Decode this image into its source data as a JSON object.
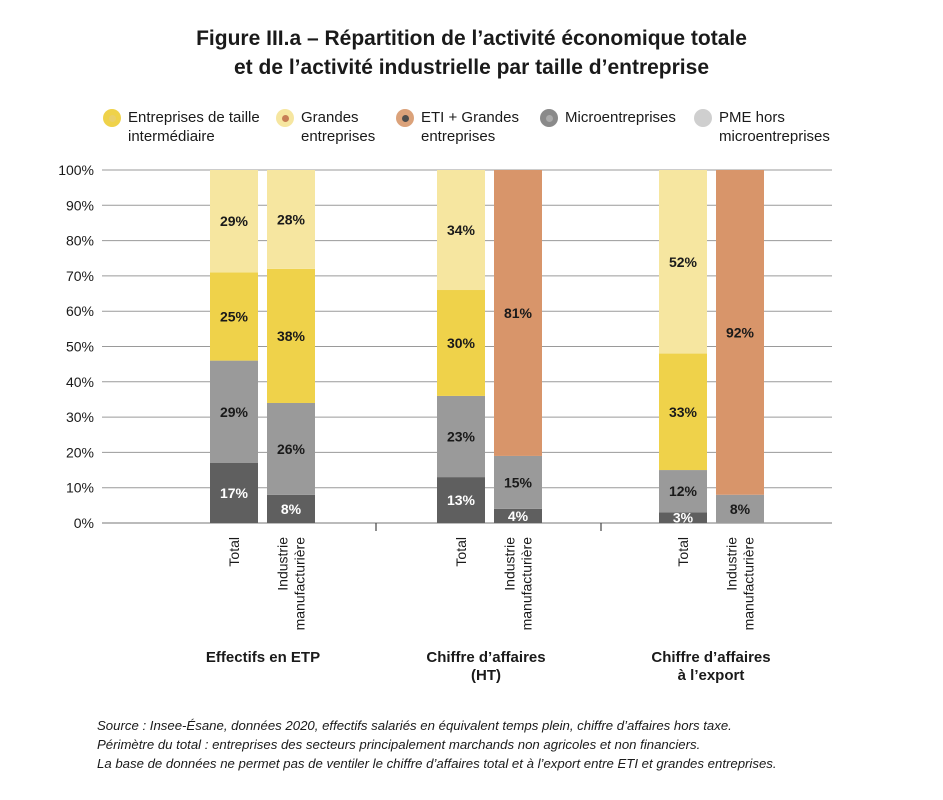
{
  "title_line1": "Figure III.a – Répartition de l’activité économique totale",
  "title_line2": "et de l’activité industrielle par taille d’entreprise",
  "legend": [
    {
      "label": "Entreprises de taille\nintermédiaire",
      "color": "#efd24a",
      "inner": "#d9b82a"
    },
    {
      "label": "Grandes\nentreprises",
      "color": "#f6e6a0",
      "inner": "#ead06a"
    },
    {
      "label": "ETI + Grandes\nentreprises",
      "color": "#dba27a",
      "inner": "#c77e55"
    },
    {
      "label": "Microentreprises",
      "color": "#8a8a8a",
      "inner": "#4d4d4d"
    },
    {
      "label": "PME hors\nmicroentreprises",
      "color": "#cfcfcf",
      "inner": "#ababab"
    }
  ],
  "chart_data": {
    "type": "bar",
    "stacked": true,
    "y_ticks": [
      "0%",
      "10%",
      "20%",
      "30%",
      "40%",
      "50%",
      "60%",
      "70%",
      "80%",
      "90%",
      "100%"
    ],
    "ylim": [
      0,
      100
    ],
    "grid": true,
    "segment_colors": {
      "micro": "#5f5f5f",
      "pme": "#9a9a9a",
      "eti": "#efd24a",
      "ge": "#f6e6a0",
      "etige": "#d8956a"
    },
    "groups": [
      {
        "label": "Effectifs en ETP",
        "bars": [
          {
            "label": "Total",
            "segments": [
              {
                "series": "micro",
                "value": 17,
                "label": "17%",
                "dark": true
              },
              {
                "series": "pme",
                "value": 29,
                "label": "29%"
              },
              {
                "series": "eti",
                "value": 25,
                "label": "25%"
              },
              {
                "series": "ge",
                "value": 29,
                "label": "29%"
              }
            ]
          },
          {
            "label": "Industrie\nmanufacturière",
            "segments": [
              {
                "series": "micro",
                "value": 8,
                "label": "8%",
                "dark": true
              },
              {
                "series": "pme",
                "value": 26,
                "label": "26%"
              },
              {
                "series": "eti",
                "value": 38,
                "label": "38%"
              },
              {
                "series": "ge",
                "value": 28,
                "label": "28%"
              }
            ]
          }
        ]
      },
      {
        "label": "Chiffre d’affaires\n(HT)",
        "bars": [
          {
            "label": "Total",
            "segments": [
              {
                "series": "micro",
                "value": 13,
                "label": "13%",
                "dark": true
              },
              {
                "series": "pme",
                "value": 23,
                "label": "23%"
              },
              {
                "series": "eti",
                "value": 30,
                "label": "30%"
              },
              {
                "series": "ge",
                "value": 34,
                "label": "34%"
              }
            ]
          },
          {
            "label": "Industrie\nmanufacturière",
            "segments": [
              {
                "series": "micro",
                "value": 4,
                "label": "4%",
                "dark": true
              },
              {
                "series": "pme",
                "value": 15,
                "label": "15%"
              },
              {
                "series": "etige",
                "value": 81,
                "label": "81%"
              }
            ]
          }
        ]
      },
      {
        "label": "Chiffre d’affaires\nà l’export",
        "bars": [
          {
            "label": "Total",
            "segments": [
              {
                "series": "micro",
                "value": 3,
                "label": "3%",
                "dark": true
              },
              {
                "series": "pme",
                "value": 12,
                "label": "12%"
              },
              {
                "series": "eti",
                "value": 33,
                "label": "33%"
              },
              {
                "series": "ge",
                "value": 52,
                "label": "52%"
              }
            ]
          },
          {
            "label": "Industrie\nmanufacturière",
            "segments": [
              {
                "series": "pme",
                "value": 8,
                "label": "8%"
              },
              {
                "series": "etige",
                "value": 92,
                "label": "92%"
              }
            ]
          }
        ]
      }
    ]
  },
  "source_lines": [
    "Source : Insee-Ésane, données 2020, effectifs salariés en équivalent temps plein, chiffre d’affaires hors taxe.",
    "Périmètre du total : entreprises des secteurs principalement marchands non agricoles et non financiers.",
    "La base de données ne permet pas de ventiler le chiffre d’affaires total et à l’export entre ETI et grandes entreprises."
  ]
}
